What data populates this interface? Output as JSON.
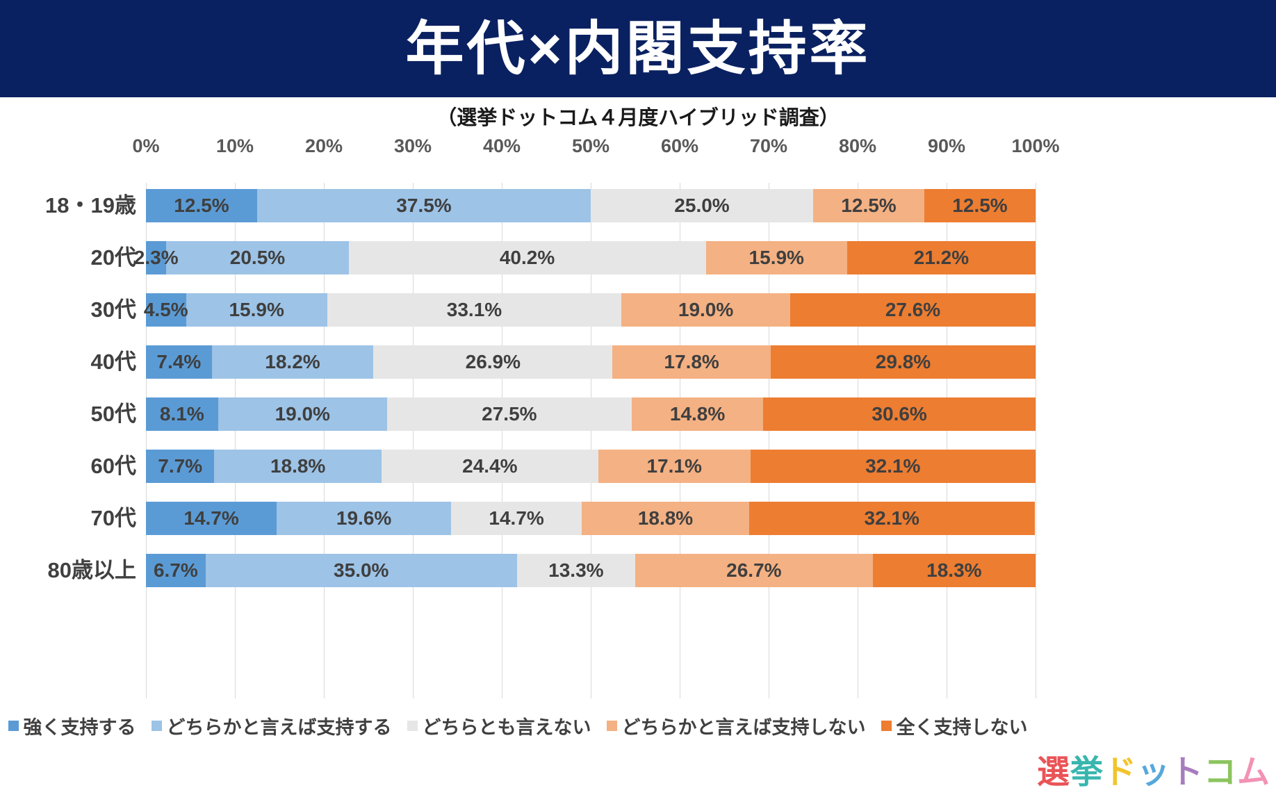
{
  "header": {
    "title": "年代×内閣支持率",
    "background": "#0A2161",
    "text_color": "#FFFFFF"
  },
  "subtitle": "（選挙ドットコム４月度ハイブリッド調査）",
  "chart_data": {
    "type": "bar",
    "stacked": true,
    "orientation": "horizontal",
    "title": "年代×内閣支持率",
    "subtitle": "（選挙ドットコム４月度ハイブリッド調査）",
    "x_axis": {
      "min": 0,
      "max": 100,
      "ticks": [
        "0%",
        "10%",
        "20%",
        "30%",
        "40%",
        "50%",
        "60%",
        "70%",
        "80%",
        "90%",
        "100%"
      ],
      "grid": true
    },
    "categories": [
      "18・19歳",
      "20代",
      "30代",
      "40代",
      "50代",
      "60代",
      "70代",
      "80歳以上"
    ],
    "series": [
      {
        "name": "強く支持する",
        "color": "#5B9BD5",
        "values": [
          12.5,
          2.3,
          4.5,
          7.4,
          8.1,
          7.7,
          14.7,
          6.7
        ]
      },
      {
        "name": "どちらかと言えば支持する",
        "color": "#9DC3E6",
        "values": [
          37.5,
          20.5,
          15.9,
          18.2,
          19.0,
          18.8,
          19.6,
          35.0
        ]
      },
      {
        "name": "どちらとも言えない",
        "color": "#E7E6E6",
        "values": [
          25.0,
          40.2,
          33.1,
          26.9,
          27.5,
          24.4,
          14.7,
          13.3
        ]
      },
      {
        "name": "どちらかと言えば支持しない",
        "color": "#F4B183",
        "values": [
          12.5,
          15.9,
          19.0,
          17.8,
          14.8,
          17.1,
          18.8,
          26.7
        ]
      },
      {
        "name": "全く支持しない",
        "color": "#ED7D31",
        "values": [
          12.5,
          21.2,
          27.6,
          29.8,
          30.6,
          32.1,
          32.1,
          18.3
        ]
      }
    ],
    "value_label_format": "one-decimal-percent",
    "legend_position": "bottom"
  },
  "logo": {
    "text": "選挙ドットコム",
    "chars": [
      {
        "char": "選",
        "color": "#EA5457"
      },
      {
        "char": "挙",
        "color": "#38B6AE"
      },
      {
        "char": "ド",
        "color": "#F2C42C"
      },
      {
        "char": "ッ",
        "color": "#56A8DC"
      },
      {
        "char": "ト",
        "color": "#A87CBE"
      },
      {
        "char": "コ",
        "color": "#8CC45F"
      },
      {
        "char": "ム",
        "color": "#F292B4"
      }
    ]
  },
  "colors": {
    "grid": "#D9D9D9",
    "tick_label": "#595959",
    "category_label": "#404040",
    "value_label": "#3F3F3F",
    "legend_label": "#404040"
  }
}
